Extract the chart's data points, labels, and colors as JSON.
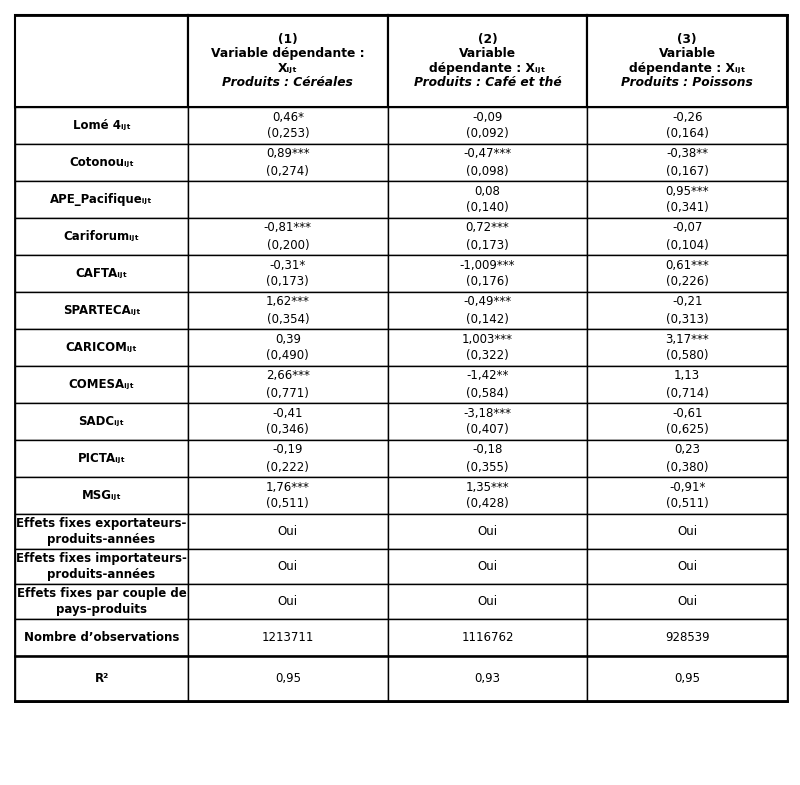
{
  "col_headers": [
    [
      "(1)",
      "Variable dépendante :",
      "Xᵢⱼₜ",
      "Produits : Céréales"
    ],
    [
      "(2)",
      "Variable",
      "dépendante : Xᵢⱼₜ",
      "Produits : Café et thé"
    ],
    [
      "(3)",
      "Variable",
      "dépendante : Xᵢⱼₜ",
      "Produits : Poissons"
    ]
  ],
  "rows": [
    {
      "label": "Lomé 4ᵢⱼₜ",
      "label_parts": [
        [
          "Lomé 4",
          "bold"
        ],
        [
          "ᵢⱼₜ",
          "small"
        ]
      ],
      "values": [
        "0,46*\n(0,253)",
        "-0,09\n(0,092)",
        "-0,26\n(0,164)"
      ],
      "two_lines": true
    },
    {
      "label": "Cotonouᵢⱼₜ",
      "values": [
        "0,89***\n(0,274)",
        "-0,47***\n(0,098)",
        "-0,38**\n(0,167)"
      ],
      "two_lines": true
    },
    {
      "label": "APE_Pacifiqueᵢⱼₜ",
      "values": [
        "",
        "0,08\n(0,140)",
        "0,95***\n(0,341)"
      ],
      "two_lines": true
    },
    {
      "label": "Cariforumᵢⱼₜ",
      "values": [
        "-0,81***\n(0,200)",
        "0,72***\n(0,173)",
        "-0,07\n(0,104)"
      ],
      "two_lines": true
    },
    {
      "label": "CAFTAᵢⱼₜ",
      "values": [
        "-0,31*\n(0,173)",
        "-1,009***\n(0,176)",
        "0,61***\n(0,226)"
      ],
      "two_lines": true
    },
    {
      "label": "SPARTECAᵢⱼₜ",
      "values": [
        "1,62***\n(0,354)",
        "-0,49***\n(0,142)",
        "-0,21\n(0,313)"
      ],
      "two_lines": true
    },
    {
      "label": "CARICOMᵢⱼₜ",
      "values": [
        "0,39\n(0,490)",
        "1,003***\n(0,322)",
        "3,17***\n(0,580)"
      ],
      "two_lines": true
    },
    {
      "label": "COMESAᵢⱼₜ",
      "values": [
        "2,66***\n(0,771)",
        "-1,42**\n(0,584)",
        "1,13\n(0,714)"
      ],
      "two_lines": true
    },
    {
      "label": "SADCᵢⱼₜ",
      "values": [
        "-0,41\n(0,346)",
        "-3,18***\n(0,407)",
        "-0,61\n(0,625)"
      ],
      "two_lines": true
    },
    {
      "label": "PICTAᵢⱼₜ",
      "values": [
        "-0,19\n(0,222)",
        "-0,18\n(0,355)",
        "0,23\n(0,380)"
      ],
      "two_lines": true
    },
    {
      "label": "MSGᵢⱼₜ",
      "values": [
        "1,76***\n(0,511)",
        "1,35***\n(0,428)",
        "-0,91*\n(0,511)"
      ],
      "two_lines": true
    },
    {
      "label": "Effets fixes exportateurs-\nproduits-années",
      "values": [
        "Oui",
        "Oui",
        "Oui"
      ],
      "two_lines": false
    },
    {
      "label": "Effets fixes importateurs-\nproduits-années",
      "values": [
        "Oui",
        "Oui",
        "Oui"
      ],
      "two_lines": false
    },
    {
      "label": "Effets fixes par couple de\npays-produits",
      "values": [
        "Oui",
        "Oui",
        "Oui"
      ],
      "two_lines": false
    },
    {
      "label": "Nombre d’observations",
      "values": [
        "1213711",
        "1116762",
        "928539"
      ],
      "two_lines": false
    },
    {
      "label": "R²",
      "values": [
        "0,95",
        "0,93",
        "0,95"
      ],
      "two_lines": false
    }
  ],
  "bg_color": "#ffffff"
}
